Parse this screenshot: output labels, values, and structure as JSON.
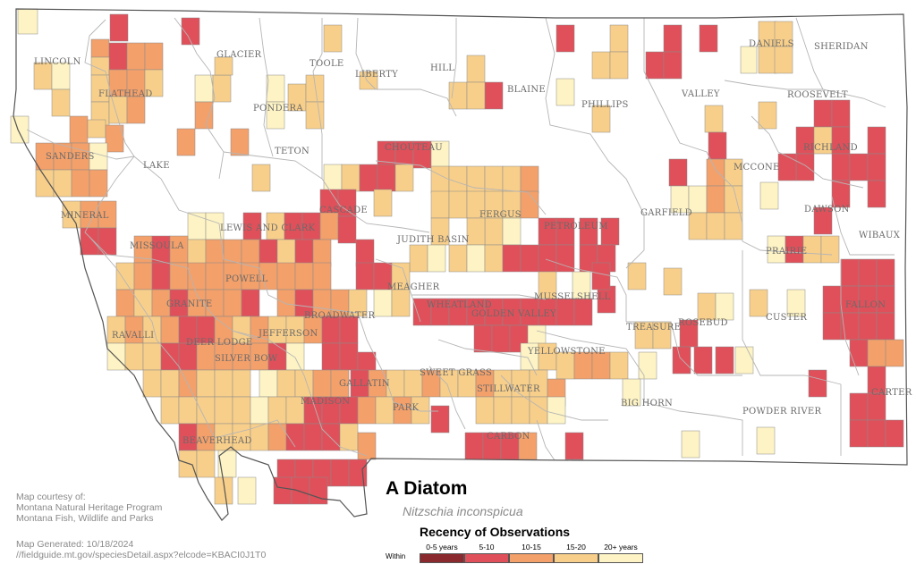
{
  "map": {
    "title": "A Diatom",
    "scientific_name": "Nitzschia inconspicua",
    "colors": {
      "bin_0_5": "#8b2a2e",
      "bin_5_10": "#e0505a",
      "bin_10_15": "#f3a06a",
      "bin_15_20": "#f8cf8a",
      "bin_20_plus": "#fdf3c4",
      "county_border": "#b5b5b5",
      "state_border": "#555555"
    },
    "county_labels": [
      "LINCOLN",
      "FLATHEAD",
      "GLACIER",
      "TOOLE",
      "LIBERTY",
      "HILL",
      "BLAINE",
      "PHILLIPS",
      "VALLEY",
      "DANIELS",
      "SHERIDAN",
      "ROOSEVELT",
      "PONDERA",
      "TETON",
      "SANDERS",
      "LAKE",
      "CHOUTEAU",
      "RICHLAND",
      "MCCONE",
      "MINERAL",
      "CASCADE",
      "FERGUS",
      "GARFIELD",
      "DAWSON",
      "LEWIS AND CLARK",
      "MISSOULA",
      "JUDITH BASIN",
      "PETROLEUM",
      "PRAIRIE",
      "WIBAUX",
      "POWELL",
      "MEAGHER",
      "WHEATLAND",
      "GOLDEN VALLEY",
      "MUSSELSHELL",
      "GRANITE",
      "BROADWATER",
      "RAVALLI",
      "DEER LODGE",
      "JEFFERSON",
      "TREASURE",
      "ROSEBUD",
      "CUSTER",
      "FALLON",
      "SILVER BOW",
      "YELLOWSTONE",
      "SWEET GRASS",
      "GALLATIN",
      "STILLWATER",
      "PARK",
      "BIG HORN",
      "POWDER RIVER",
      "CARTER",
      "MADISON",
      "BEAVERHEAD",
      "CARBON"
    ],
    "legend": {
      "title": "Recency of Observations",
      "within_label": "Within",
      "bins": [
        "0-5 years",
        "5-10",
        "10-15",
        "15-20",
        "20+ years"
      ]
    },
    "credits": {
      "line1": "Map courtesy of:",
      "line2": "Montana Natural Heritage Program",
      "line3": "Montana Fish, Wildlife and Parks",
      "generated": "Map Generated: 10/18/2024",
      "url": "//fieldguide.mt.gov/speciesDetail.aspx?elcode=KBACI0J1T0"
    }
  }
}
